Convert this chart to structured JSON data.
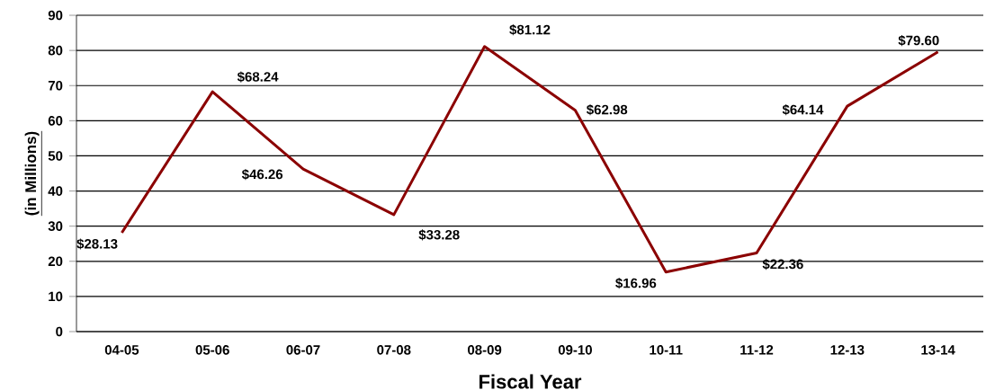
{
  "chart_data": {
    "type": "line",
    "xlabel": "Fiscal Year",
    "ylabel": "(in Millions)",
    "categories": [
      "04-05",
      "05-06",
      "06-07",
      "07-08",
      "08-09",
      "09-10",
      "10-11",
      "11-12",
      "12-13",
      "13-14"
    ],
    "values": [
      28.13,
      68.24,
      46.26,
      33.28,
      81.12,
      62.98,
      16.96,
      22.36,
      64.14,
      79.6
    ],
    "value_labels": [
      "$28.13",
      "$68.24",
      "$46.26",
      "$33.28",
      "$81.12",
      "$62.98",
      "$16.96",
      "$22.36",
      "$64.14",
      "$79.60"
    ],
    "color": "#8b0000",
    "ylim": [
      0,
      90
    ],
    "yticks": [
      0,
      10,
      20,
      30,
      40,
      50,
      60,
      70,
      80,
      90
    ],
    "grid": "y",
    "marker": "none",
    "line_style": "solid"
  }
}
